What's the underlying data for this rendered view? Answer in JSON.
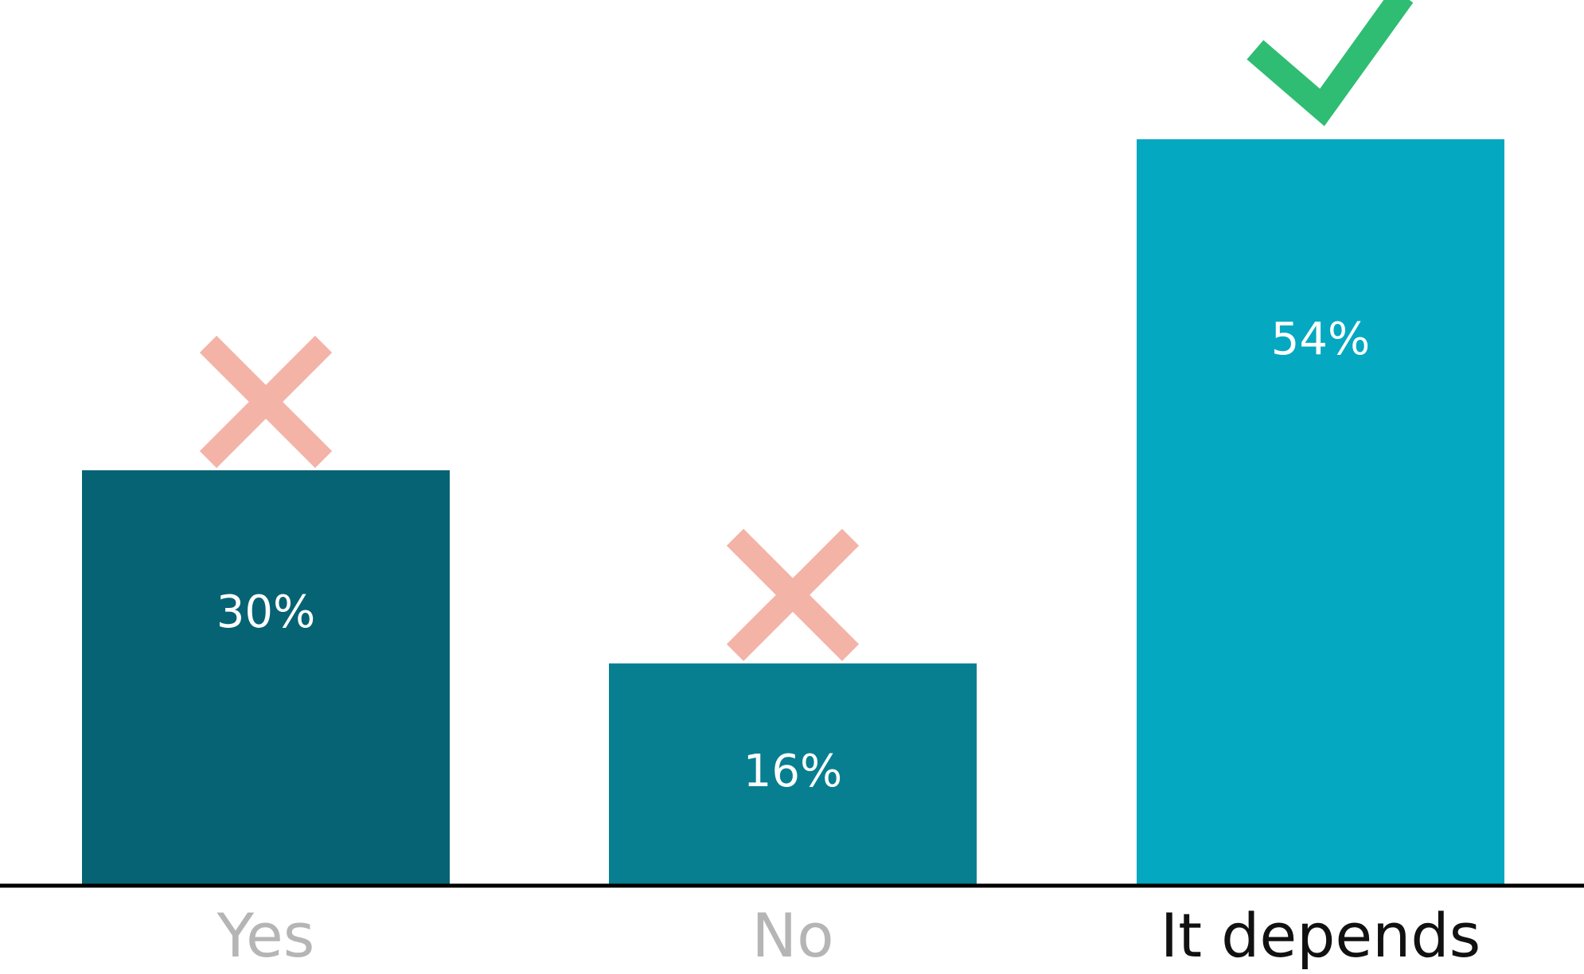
{
  "chart_data": {
    "type": "bar",
    "categories": [
      "Yes",
      "No",
      "It depends"
    ],
    "values": [
      30,
      16,
      54
    ],
    "value_labels": [
      "30%",
      "16%",
      "54%"
    ],
    "marks": [
      "cross",
      "cross",
      "check"
    ],
    "ylim": [
      0,
      54
    ],
    "grid": false,
    "legend": "none",
    "title": "",
    "xlabel": "",
    "ylabel": ""
  },
  "colors": {
    "bars": [
      "#066374",
      "#077f91",
      "#04a8c1"
    ],
    "cross": "#f4b3a7",
    "check": "#2ebd72",
    "axis": "#000000",
    "value_label": "#ffffff",
    "category_label_muted": "#b5b5b5",
    "category_label_highlight": "#111111"
  },
  "icons": [
    "cross-icon",
    "cross-icon",
    "check-icon"
  ]
}
